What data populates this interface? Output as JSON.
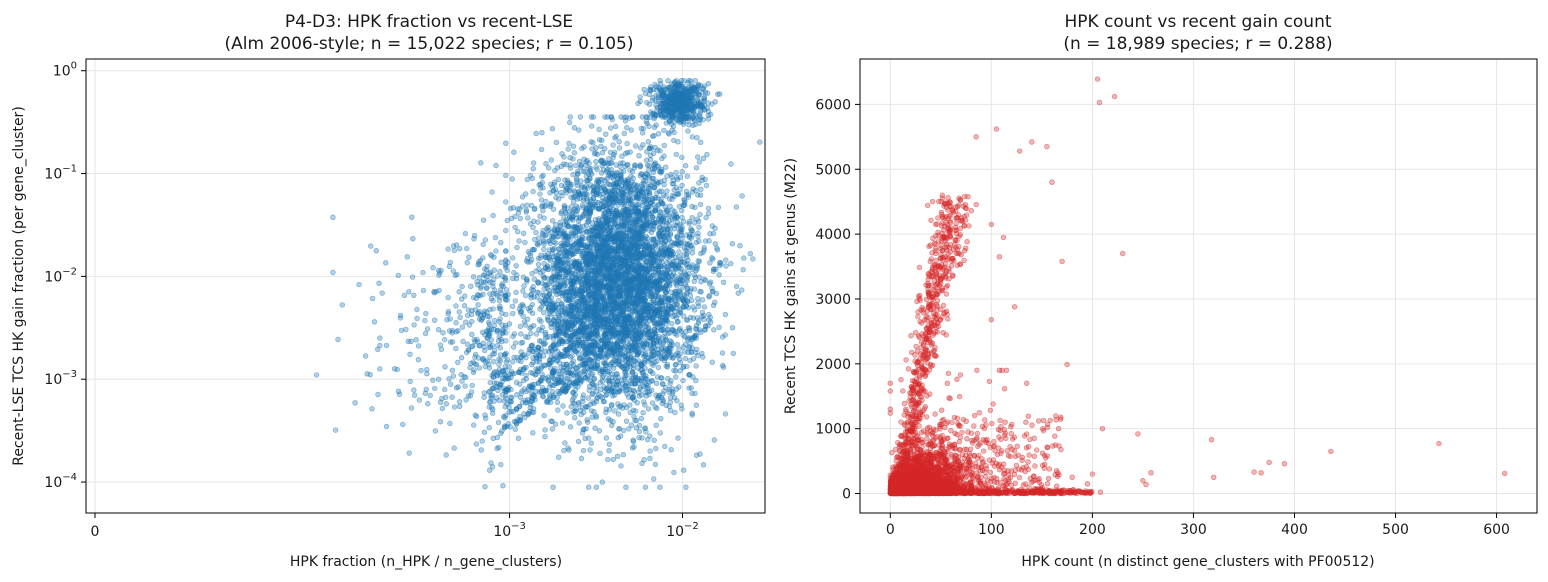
{
  "chart_data": [
    {
      "type": "scatter",
      "title": "P4-D3: HPK fraction vs recent-LSE",
      "subtitle": "(Alm 2006-style; n = 15,022 species; r = 0.105)",
      "xlabel": "HPK fraction (n_HPK / n_gene_clusters)",
      "ylabel": "Recent-LSE TCS HK gain fraction (per gene_cluster)",
      "x_scale": "symlog",
      "y_scale": "log",
      "xlim": [
        0,
        0.03
      ],
      "ylim": [
        5e-05,
        1.3
      ],
      "x_ticks": [
        {
          "value": 0,
          "base": "0",
          "exp": ""
        },
        {
          "value": 0.001,
          "base": "10",
          "exp": "−3"
        },
        {
          "value": 0.01,
          "base": "10",
          "exp": "−2"
        }
      ],
      "y_ticks": [
        {
          "value": 0.0001,
          "base": "10",
          "exp": "−4"
        },
        {
          "value": 0.001,
          "base": "10",
          "exp": "−3"
        },
        {
          "value": 0.01,
          "base": "10",
          "exp": "−2"
        },
        {
          "value": 0.1,
          "base": "10",
          "exp": "−1"
        },
        {
          "value": 1,
          "base": "10",
          "exp": "0"
        }
      ],
      "grid": true,
      "color": "#1f77b4",
      "n_points": 15022,
      "correlation_r": 0.105,
      "point_distribution": {
        "main_cloud_x_range": [
          0.001,
          0.02
        ],
        "main_cloud_y_range": [
          0.0001,
          0.3
        ],
        "main_cloud_center": [
          0.004,
          0.008
        ],
        "dense_cluster_center": [
          0.0095,
          0.5
        ],
        "sparse_tail_x_range": [
          8e-05,
          0.001
        ]
      }
    },
    {
      "type": "scatter",
      "title": "HPK count vs recent gain count",
      "subtitle": "(n = 18,989 species; r = 0.288)",
      "xlabel": "HPK count (n distinct gene_clusters with PF00512)",
      "ylabel": "Recent TCS HK gains at genus (M22)",
      "x_scale": "linear",
      "y_scale": "linear",
      "xlim": [
        -30,
        640
      ],
      "ylim": [
        -300,
        6700
      ],
      "x_ticks": [
        0,
        100,
        200,
        300,
        400,
        500,
        600
      ],
      "y_ticks": [
        0,
        1000,
        2000,
        3000,
        4000,
        5000,
        6000
      ],
      "grid": true,
      "color": "#d62728",
      "n_points": 18989,
      "correlation_r": 0.288,
      "outliers": [
        {
          "x": 205,
          "y": 6390
        },
        {
          "x": 207,
          "y": 6030
        },
        {
          "x": 222,
          "y": 6120
        },
        {
          "x": 230,
          "y": 3700
        },
        {
          "x": 170,
          "y": 3580
        },
        {
          "x": 123,
          "y": 2880
        },
        {
          "x": 175,
          "y": 1990
        },
        {
          "x": 135,
          "y": 1700
        },
        {
          "x": 245,
          "y": 920
        },
        {
          "x": 318,
          "y": 830
        },
        {
          "x": 543,
          "y": 770
        },
        {
          "x": 436,
          "y": 650
        },
        {
          "x": 390,
          "y": 460
        },
        {
          "x": 375,
          "y": 480
        },
        {
          "x": 360,
          "y": 330
        },
        {
          "x": 367,
          "y": 320
        },
        {
          "x": 320,
          "y": 250
        },
        {
          "x": 608,
          "y": 310
        },
        {
          "x": 258,
          "y": 320
        },
        {
          "x": 250,
          "y": 200
        },
        {
          "x": 253,
          "y": 140
        },
        {
          "x": 210,
          "y": 1000
        },
        {
          "x": 200,
          "y": 300
        },
        {
          "x": 195,
          "y": 150
        },
        {
          "x": 180,
          "y": 250
        },
        {
          "x": 208,
          "y": 20
        },
        {
          "x": 0,
          "y": 1700
        },
        {
          "x": 0,
          "y": 1580
        },
        {
          "x": 0,
          "y": 1300
        },
        {
          "x": 0,
          "y": 1240
        },
        {
          "x": 105,
          "y": 5620
        },
        {
          "x": 140,
          "y": 5420
        },
        {
          "x": 155,
          "y": 5350
        },
        {
          "x": 128,
          "y": 5280
        },
        {
          "x": 160,
          "y": 4800
        },
        {
          "x": 85,
          "y": 5500
        },
        {
          "x": 100,
          "y": 4150
        },
        {
          "x": 108,
          "y": 3650
        },
        {
          "x": 112,
          "y": 3950
        },
        {
          "x": 100,
          "y": 2680
        },
        {
          "x": 115,
          "y": 1900
        }
      ]
    }
  ]
}
